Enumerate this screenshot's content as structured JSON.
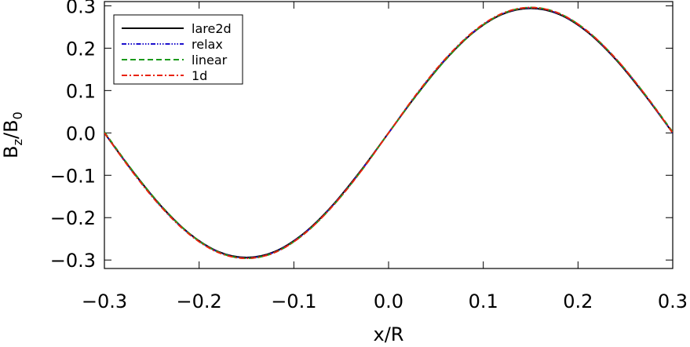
{
  "chart_data": {
    "type": "line",
    "title": "",
    "xlabel": "x/R",
    "ylabel_main": "B",
    "ylabel_sub1": "z",
    "ylabel_sep": "/B",
    "ylabel_sub2": "0",
    "xlim": [
      -0.3,
      0.3
    ],
    "ylim": [
      -0.32,
      0.31
    ],
    "legend_position": "top-left",
    "x_ticks": [
      -0.3,
      -0.2,
      -0.1,
      0.0,
      0.1,
      0.2,
      0.3
    ],
    "x_tick_labels": [
      "−0.3",
      "−0.2",
      "−0.1",
      "0.0",
      "0.1",
      "0.2",
      "0.3"
    ],
    "y_ticks": [
      -0.3,
      -0.2,
      -0.1,
      0.0,
      0.1,
      0.2,
      0.3
    ],
    "y_tick_labels": [
      "−0.3",
      "−0.2",
      "−0.1",
      "0.0",
      "0.1",
      "0.2",
      "0.3"
    ],
    "x": [
      -0.3,
      -0.27,
      -0.24,
      -0.21,
      -0.18,
      -0.15,
      -0.12,
      -0.09,
      -0.06,
      -0.03,
      0.0,
      0.03,
      0.06,
      0.09,
      0.12,
      0.15,
      0.18,
      0.21,
      0.24,
      0.27,
      0.3
    ],
    "series": [
      {
        "name": "lare2d",
        "color": "#000000",
        "dash": "",
        "values": [
          0.0,
          -0.091,
          -0.173,
          -0.238,
          -0.28,
          -0.294,
          -0.28,
          -0.238,
          -0.173,
          -0.091,
          0.0,
          0.091,
          0.173,
          0.238,
          0.28,
          0.294,
          0.28,
          0.238,
          0.173,
          0.091,
          0.0
        ]
      },
      {
        "name": "relax",
        "color": "#1c10cc",
        "dash": "6,2,1.5,2,1.5,2,1.5,2",
        "values": [
          0.0,
          -0.092,
          -0.174,
          -0.239,
          -0.281,
          -0.295,
          -0.281,
          -0.239,
          -0.174,
          -0.092,
          0.0,
          0.092,
          0.174,
          0.239,
          0.281,
          0.295,
          0.281,
          0.239,
          0.174,
          0.092,
          0.0
        ]
      },
      {
        "name": "linear",
        "color": "#1a9a1a",
        "dash": "7,4",
        "values": [
          0.002,
          -0.09,
          -0.172,
          -0.238,
          -0.281,
          -0.296,
          -0.282,
          -0.24,
          -0.175,
          -0.093,
          0.0,
          0.09,
          0.172,
          0.238,
          0.281,
          0.296,
          0.282,
          0.24,
          0.175,
          0.093,
          0.002
        ]
      },
      {
        "name": "1d",
        "color": "#e8230a",
        "dash": "7,3,2,3",
        "values": [
          0.0,
          -0.093,
          -0.175,
          -0.24,
          -0.282,
          -0.296,
          -0.282,
          -0.24,
          -0.175,
          -0.093,
          0.0,
          0.093,
          0.175,
          0.24,
          0.282,
          0.296,
          0.282,
          0.24,
          0.175,
          0.093,
          0.0
        ]
      }
    ]
  }
}
